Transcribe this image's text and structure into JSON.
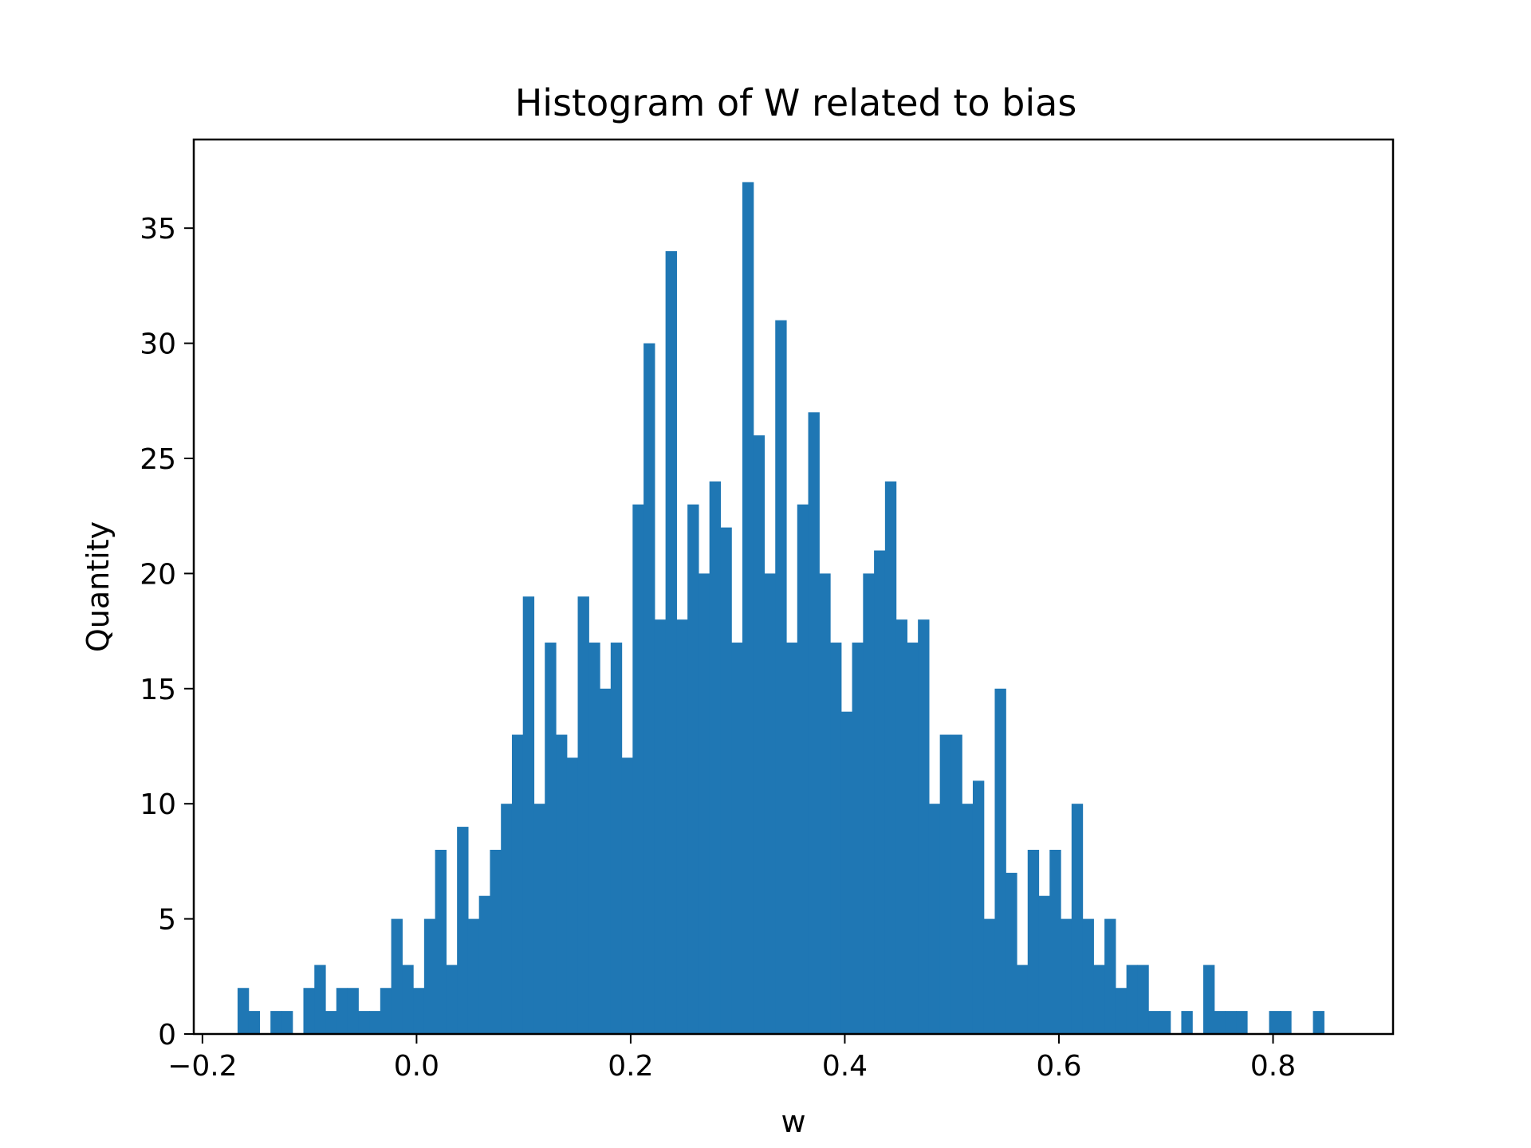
{
  "chart_data": {
    "type": "bar",
    "title": "Histogram of W related to bias",
    "xlabel": "w",
    "ylabel": "Quantity",
    "xlim": [
      -0.2081,
      0.9121
    ],
    "ylim": [
      0,
      38.85
    ],
    "xticks": [
      {
        "value": -0.2,
        "label": "−0.2"
      },
      {
        "value": 0.0,
        "label": "0.0"
      },
      {
        "value": 0.2,
        "label": "0.2"
      },
      {
        "value": 0.4,
        "label": "0.4"
      },
      {
        "value": 0.6,
        "label": "0.6"
      },
      {
        "value": 0.8,
        "label": "0.8"
      }
    ],
    "yticks": [
      {
        "value": 0,
        "label": "0"
      },
      {
        "value": 5,
        "label": "5"
      },
      {
        "value": 10,
        "label": "10"
      },
      {
        "value": 15,
        "label": "15"
      },
      {
        "value": 20,
        "label": "20"
      },
      {
        "value": 25,
        "label": "25"
      },
      {
        "value": 30,
        "label": "30"
      },
      {
        "value": 35,
        "label": "35"
      }
    ],
    "bins": {
      "start": -0.1672,
      "width": 0.01025
    },
    "values": [
      2,
      1,
      0,
      1,
      1,
      0,
      2,
      3,
      1,
      2,
      2,
      1,
      1,
      2,
      5,
      3,
      2,
      5,
      8,
      3,
      9,
      5,
      6,
      8,
      10,
      13,
      19,
      10,
      17,
      13,
      12,
      19,
      17,
      15,
      17,
      12,
      23,
      30,
      18,
      34,
      18,
      23,
      20,
      24,
      22,
      17,
      37,
      26,
      20,
      31,
      17,
      23,
      27,
      20,
      17,
      14,
      17,
      20,
      21,
      24,
      18,
      17,
      18,
      10,
      13,
      13,
      10,
      11,
      5,
      15,
      7,
      3,
      8,
      6,
      8,
      5,
      10,
      5,
      3,
      5,
      2,
      3,
      3,
      1,
      1,
      0,
      1,
      0,
      3,
      1,
      1,
      1,
      0,
      0,
      1,
      1,
      0,
      0,
      1
    ],
    "grid": false,
    "colors": {
      "bar": "#1f77b4",
      "axes": "#000000",
      "background": "#ffffff"
    }
  }
}
